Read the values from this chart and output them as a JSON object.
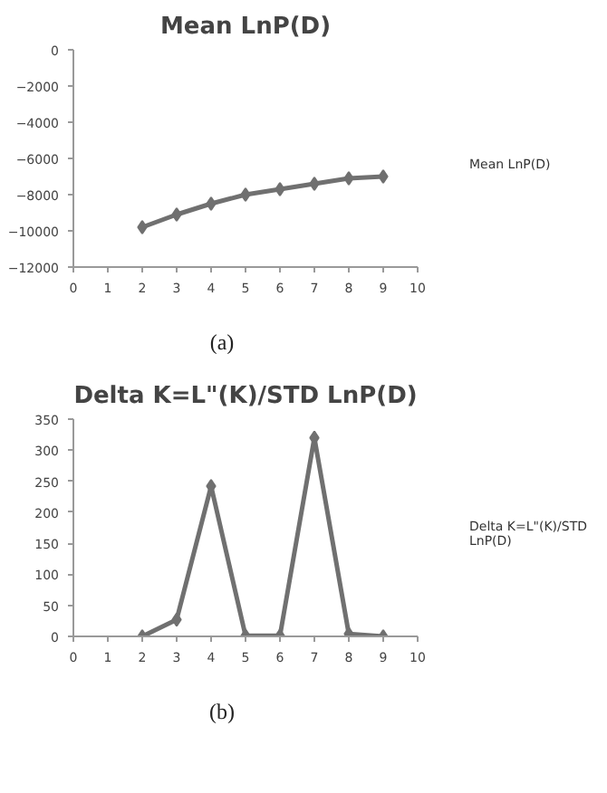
{
  "chart_data": [
    {
      "type": "line",
      "title": "Mean LnP(D)",
      "x": [
        2,
        3,
        4,
        5,
        6,
        7,
        8,
        9
      ],
      "series": [
        {
          "name": "Mean LnP(D)",
          "color": "#707070",
          "values": [
            -9800,
            -9100,
            -8500,
            -8000,
            -7700,
            -7400,
            -7100,
            -7000
          ]
        }
      ],
      "xlim": [
        0,
        10
      ],
      "xticks": [
        0,
        1,
        2,
        3,
        4,
        5,
        6,
        7,
        8,
        9,
        10
      ],
      "ylim": [
        -12000,
        0
      ],
      "yticks": [
        -12000,
        -10000,
        -8000,
        -6000,
        -4000,
        -2000,
        0
      ],
      "grid": false,
      "legend": "right",
      "marker": "diamond",
      "line_style": "solid",
      "annotations": [
        "(a)"
      ]
    },
    {
      "type": "line",
      "title": "Delta K=L\"(K)/STD LnP(D)",
      "x": [
        2,
        3,
        4,
        5,
        6,
        7,
        8,
        9
      ],
      "series": [
        {
          "name": "Delta K=L\"(K)/STD LnP(D)",
          "color": "#707070",
          "values": [
            0,
            27,
            242,
            1,
            1,
            320,
            4,
            0
          ]
        }
      ],
      "xlim": [
        0,
        10
      ],
      "xticks": [
        0,
        1,
        2,
        3,
        4,
        5,
        6,
        7,
        8,
        9,
        10
      ],
      "ylim": [
        0,
        350
      ],
      "yticks": [
        0,
        50,
        100,
        150,
        200,
        250,
        300,
        350
      ],
      "grid": false,
      "legend": "right",
      "marker": "diamond",
      "line_style": "solid",
      "annotations": [
        "(b)"
      ]
    }
  ]
}
